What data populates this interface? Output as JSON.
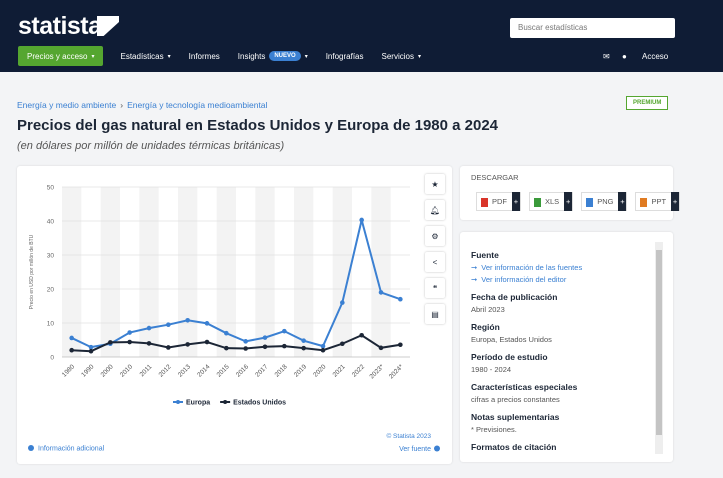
{
  "header": {
    "logo": "statista",
    "search_placeholder": "Buscar estadísticas",
    "nav": [
      "Precios y acceso",
      "Estadísticas",
      "Informes",
      "Insights",
      "Infografías",
      "Servicios"
    ],
    "badge": "NUEVO",
    "access": "Acceso"
  },
  "breadcrumb": [
    "Energía y medio ambiente",
    "Energía y tecnología medioambiental"
  ],
  "premium": "PREMIUM",
  "title": "Precios del gas natural en Estados Unidos y Europa de 1980 a 2024",
  "subtitle": "(en dólares por millón de unidades térmicas británicas)",
  "chart_data": {
    "type": "line",
    "y_label": "Precio en USD por millón de BTU",
    "categories": [
      "1980",
      "1990",
      "2000",
      "2010",
      "2011",
      "2012",
      "2013",
      "2014",
      "2015",
      "2016",
      "2017",
      "2018",
      "2019",
      "2020",
      "2021",
      "2022",
      "2023*",
      "2024*"
    ],
    "series": [
      {
        "name": "Europa",
        "color": "#3b80d2",
        "values": [
          5.6,
          2.9,
          3.9,
          7.2,
          8.5,
          9.5,
          10.8,
          9.9,
          7.0,
          4.6,
          5.7,
          7.6,
          4.8,
          3.2,
          16.0,
          40.3,
          19.0,
          17.0
        ]
      },
      {
        "name": "Estados Unidos",
        "color": "#1c2636",
        "values": [
          2.0,
          1.7,
          4.3,
          4.4,
          4.0,
          2.8,
          3.7,
          4.4,
          2.6,
          2.5,
          3.0,
          3.2,
          2.6,
          2.0,
          3.9,
          6.4,
          2.7,
          3.6
        ]
      }
    ],
    "ylim": [
      0,
      50
    ],
    "yticks": [
      0,
      10,
      20,
      30,
      40,
      50
    ],
    "grid": true,
    "legend": "bottom"
  },
  "chart_footer": {
    "info": "Información adicional",
    "credit": "© Statista 2023",
    "source": "Ver fuente"
  },
  "download": {
    "title": "DESCARGAR",
    "formats": [
      "PDF",
      "XLS",
      "PNG",
      "PPT"
    ]
  },
  "details": [
    {
      "heading": "Fuente",
      "links": [
        "Ver información de las fuentes",
        "Ver información del editor"
      ]
    },
    {
      "heading": "Fecha de publicación",
      "text": "Abril 2023"
    },
    {
      "heading": "Región",
      "text": "Europa, Estados Unidos"
    },
    {
      "heading": "Período de estudio",
      "text": "1980 - 2024"
    },
    {
      "heading": "Características especiales",
      "text": "cifras a precios constantes"
    },
    {
      "heading": "Notas suplementarias",
      "text": "* Previsiones."
    },
    {
      "heading": "Formatos de citación"
    }
  ]
}
